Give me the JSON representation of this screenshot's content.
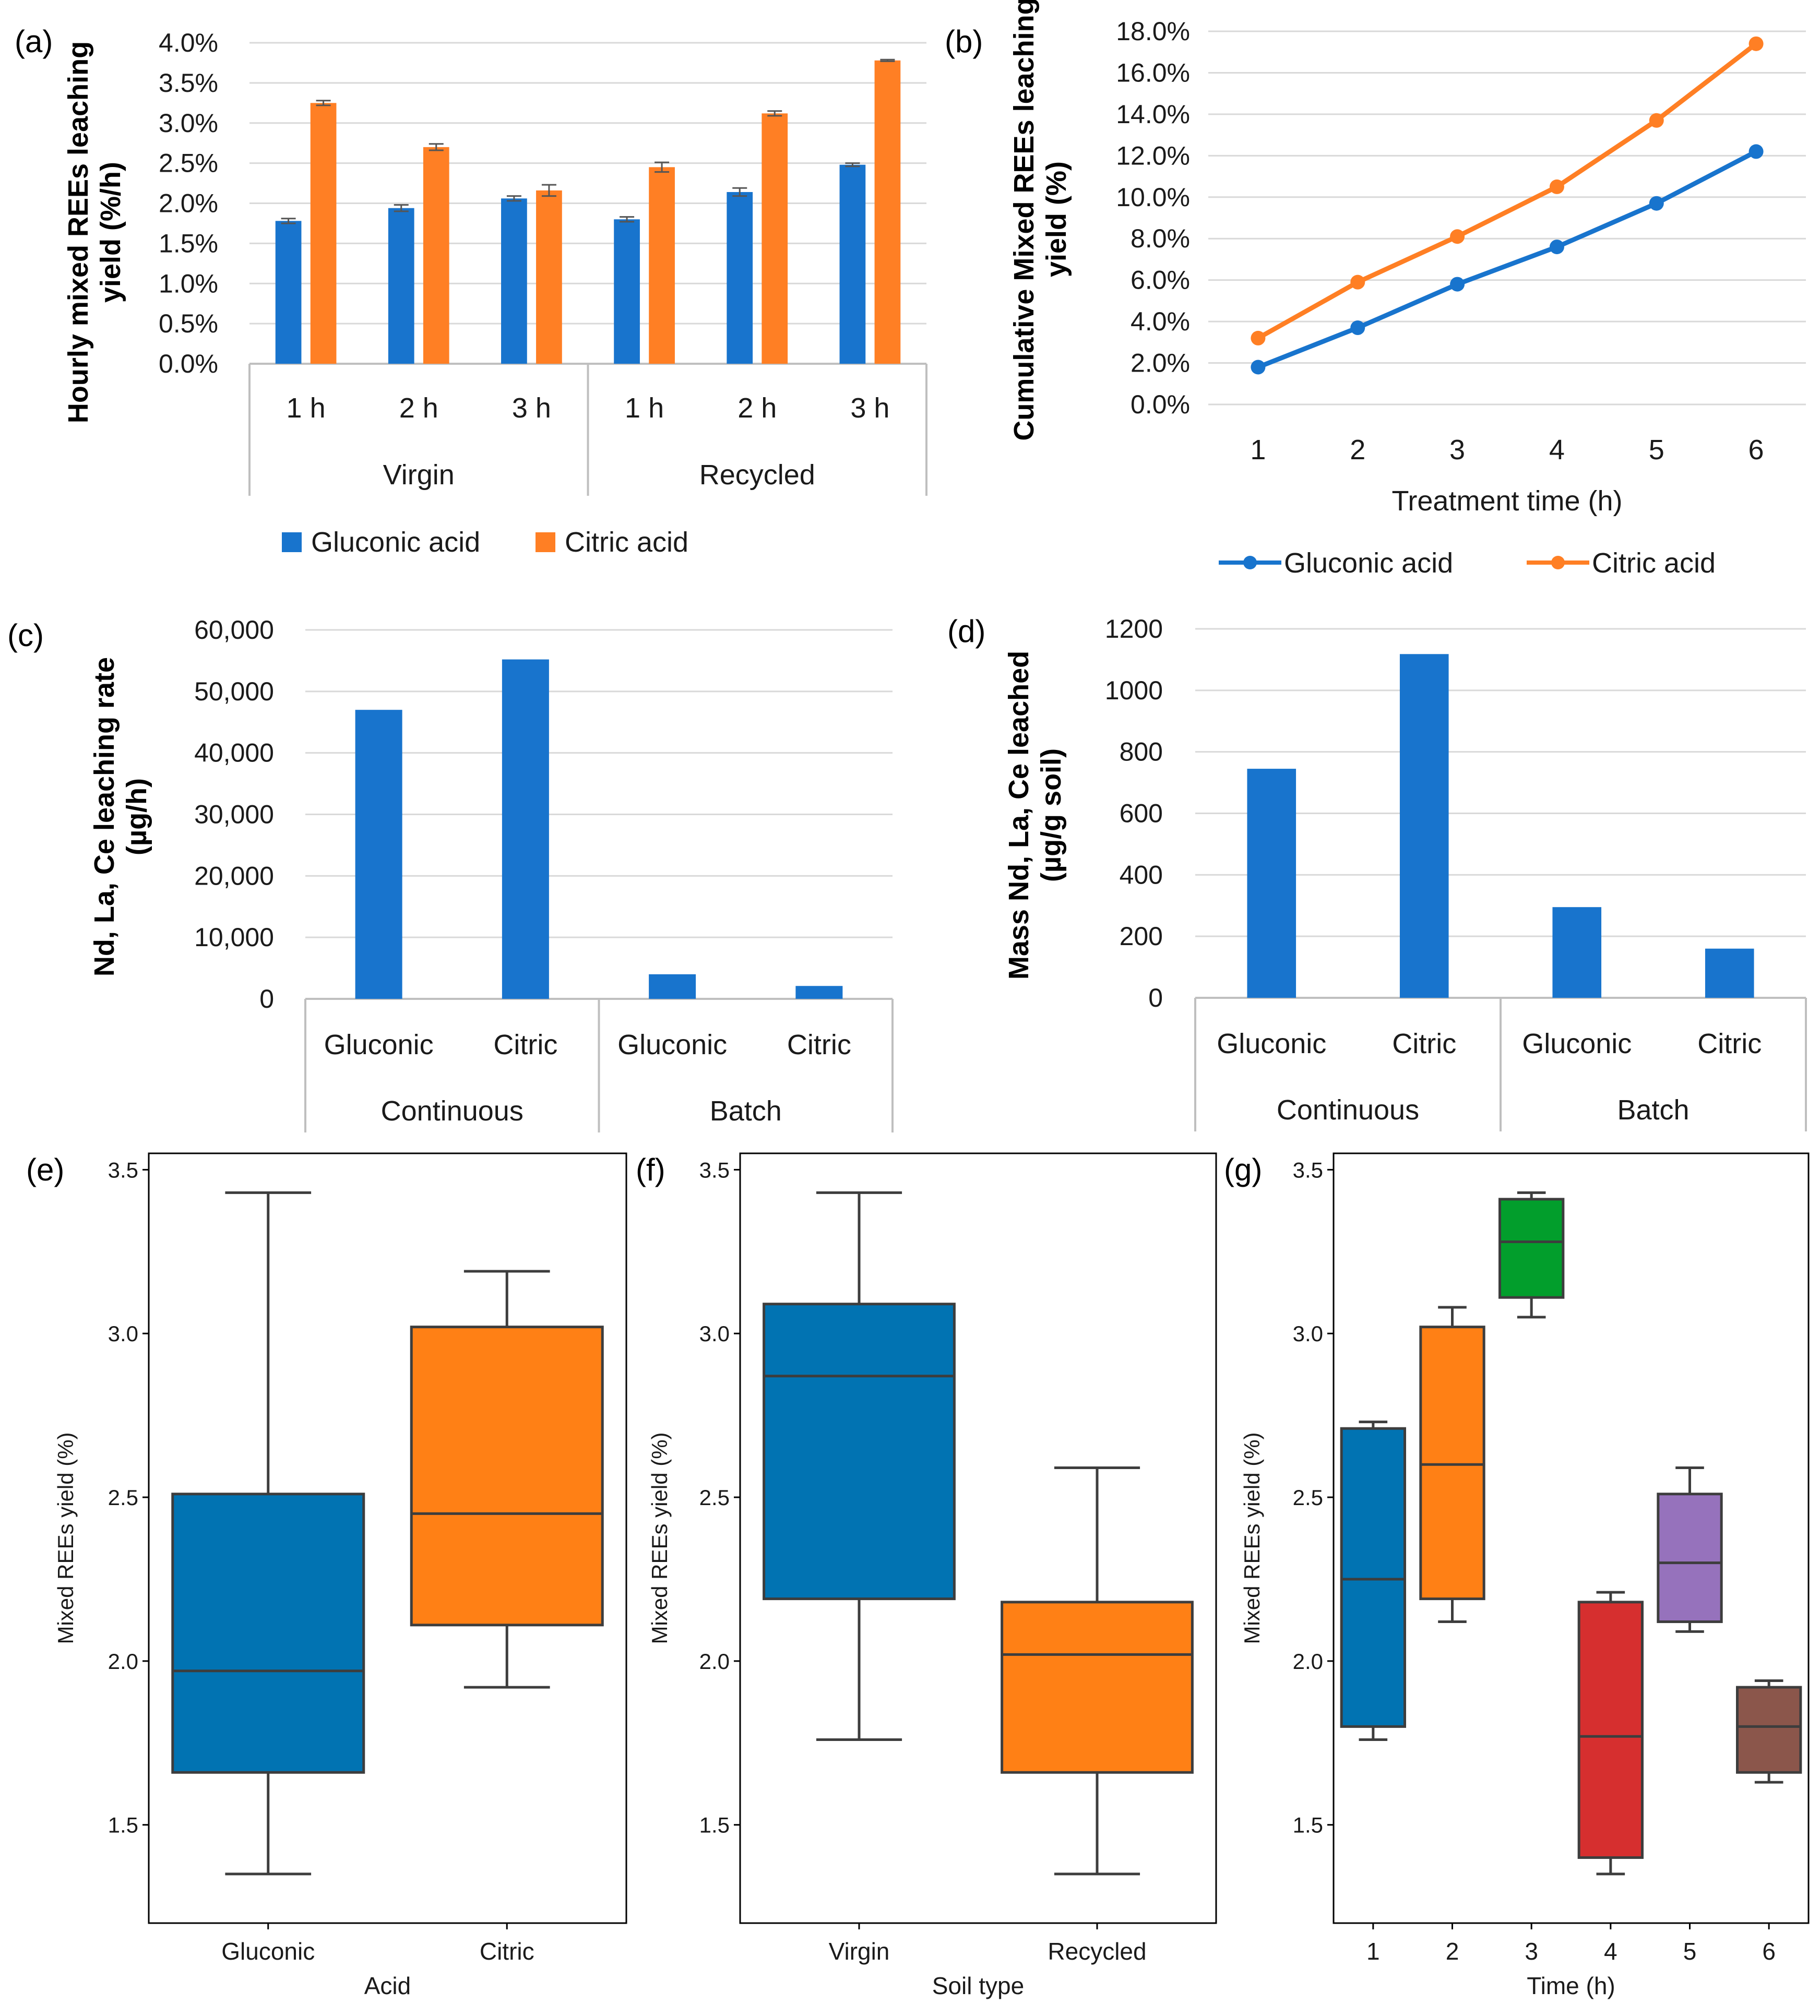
{
  "colors": {
    "gluconic": "#1874CD",
    "citric": "#FF7F24",
    "grid": "#d9d9d9",
    "axis": "#bfbfbf",
    "box_gluconic": "#0173B2",
    "box_citric": "#FF8015",
    "box_3": "#029E2C",
    "box_4": "#D62F2F",
    "box_5": "#9672BC",
    "box_6": "#8B564B",
    "box_edge": "#3d3d3d"
  },
  "legend": {
    "gluconic": "Gluconic acid",
    "citric": "Citric acid"
  },
  "panels": {
    "a": "(a)",
    "b": "(b)",
    "c": "(c)",
    "d": "(d)",
    "e": "(e)",
    "f": "(f)",
    "g": "(g)"
  },
  "chart_data": [
    {
      "id": "a",
      "type": "bar",
      "ylabel_line1": "Hourly mixed REEs leaching",
      "ylabel_line2": "yield (%/h)",
      "ylim": [
        0,
        4.0
      ],
      "yticks": [
        "0.0%",
        "0.5%",
        "1.0%",
        "1.5%",
        "2.0%",
        "2.5%",
        "3.0%",
        "3.5%",
        "4.0%"
      ],
      "groups": [
        "Virgin",
        "Recycled"
      ],
      "categories": [
        "1 h",
        "2 h",
        "3 h",
        "1 h",
        "2 h",
        "3 h"
      ],
      "series": [
        {
          "name": "Gluconic acid",
          "values": [
            1.78,
            1.94,
            2.06,
            1.8,
            2.14,
            2.48
          ],
          "errors": [
            0.03,
            0.04,
            0.03,
            0.03,
            0.05,
            0.02
          ]
        },
        {
          "name": "Citric acid",
          "values": [
            3.25,
            2.7,
            2.16,
            2.45,
            3.12,
            3.78
          ],
          "errors": [
            0.03,
            0.04,
            0.07,
            0.06,
            0.03,
            0.01
          ]
        }
      ]
    },
    {
      "id": "b",
      "type": "line",
      "ylabel_line1": "Cumulative Mixed REEs leaching",
      "ylabel_line2": "yield (%)",
      "xlabel": "Treatment time (h)",
      "ylim": [
        0,
        18.0
      ],
      "yticks": [
        "0.0%",
        "2.0%",
        "4.0%",
        "6.0%",
        "8.0%",
        "10.0%",
        "12.0%",
        "14.0%",
        "16.0%",
        "18.0%"
      ],
      "x": [
        "1",
        "2",
        "3",
        "4",
        "5",
        "6"
      ],
      "series": [
        {
          "name": "Gluconic acid",
          "values": [
            1.8,
            3.7,
            5.8,
            7.6,
            9.7,
            12.2
          ]
        },
        {
          "name": "Citric acid",
          "values": [
            3.2,
            5.9,
            8.1,
            10.5,
            13.7,
            17.4
          ]
        }
      ]
    },
    {
      "id": "c",
      "type": "bar",
      "ylabel_line1": "Nd, La, Ce leaching rate",
      "ylabel_line2": "(µg/h)",
      "ylim": [
        0,
        60000
      ],
      "yticks": [
        "0",
        "10,000",
        "20,000",
        "30,000",
        "40,000",
        "50,000",
        "60,000"
      ],
      "groups": [
        "Continuous",
        "Batch"
      ],
      "categories": [
        "Gluconic",
        "Citric",
        "Gluconic",
        "Citric"
      ],
      "values": [
        47000,
        55200,
        4000,
        2100
      ]
    },
    {
      "id": "d",
      "type": "bar",
      "ylabel_line1": "Mass Nd, La, Ce leached",
      "ylabel_line2": "(µg/g soil)",
      "ylim": [
        0,
        1200
      ],
      "yticks": [
        "0",
        "200",
        "400",
        "600",
        "800",
        "1000",
        "1200"
      ],
      "groups": [
        "Continuous",
        "Batch"
      ],
      "categories": [
        "Gluconic",
        "Citric",
        "Gluconic",
        "Citric"
      ],
      "values": [
        745,
        1118,
        295,
        160
      ]
    },
    {
      "id": "e",
      "type": "box",
      "ylabel": "Mixed REEs yield (%)",
      "xlabel": "Acid",
      "ylim": [
        1.2,
        3.55
      ],
      "yticks": [
        "1.5",
        "2.0",
        "2.5",
        "3.0",
        "3.5"
      ],
      "categories": [
        "Gluconic",
        "Citric"
      ],
      "boxes": [
        {
          "min": 1.35,
          "q1": 1.66,
          "median": 1.97,
          "q3": 2.51,
          "max": 3.43
        },
        {
          "min": 1.92,
          "q1": 2.11,
          "median": 2.45,
          "q3": 3.02,
          "max": 3.19
        }
      ]
    },
    {
      "id": "f",
      "type": "box",
      "ylabel": "Mixed REEs yield (%)",
      "xlabel": "Soil type",
      "ylim": [
        1.2,
        3.55
      ],
      "yticks": [
        "1.5",
        "2.0",
        "2.5",
        "3.0",
        "3.5"
      ],
      "categories": [
        "Virgin",
        "Recycled"
      ],
      "boxes": [
        {
          "min": 1.76,
          "q1": 2.19,
          "median": 2.87,
          "q3": 3.09,
          "max": 3.43
        },
        {
          "min": 1.35,
          "q1": 1.66,
          "median": 2.02,
          "q3": 2.18,
          "max": 2.59
        }
      ]
    },
    {
      "id": "g",
      "type": "box",
      "ylabel": "Mixed REEs yield (%)",
      "xlabel": "Time (h)",
      "ylim": [
        1.2,
        3.55
      ],
      "yticks": [
        "1.5",
        "2.0",
        "2.5",
        "3.0",
        "3.5"
      ],
      "categories": [
        "1",
        "2",
        "3",
        "4",
        "5",
        "6"
      ],
      "boxes": [
        {
          "min": 1.76,
          "q1": 1.8,
          "median": 2.25,
          "q3": 2.71,
          "max": 2.73
        },
        {
          "min": 2.12,
          "q1": 2.19,
          "median": 2.6,
          "q3": 3.02,
          "max": 3.08
        },
        {
          "min": 3.05,
          "q1": 3.11,
          "median": 3.28,
          "q3": 3.41,
          "max": 3.43
        },
        {
          "min": 1.35,
          "q1": 1.4,
          "median": 1.77,
          "q3": 2.18,
          "max": 2.21
        },
        {
          "min": 2.09,
          "q1": 2.12,
          "median": 2.3,
          "q3": 2.51,
          "max": 2.59
        },
        {
          "min": 1.63,
          "q1": 1.66,
          "median": 1.8,
          "q3": 1.92,
          "max": 1.94
        }
      ]
    }
  ]
}
